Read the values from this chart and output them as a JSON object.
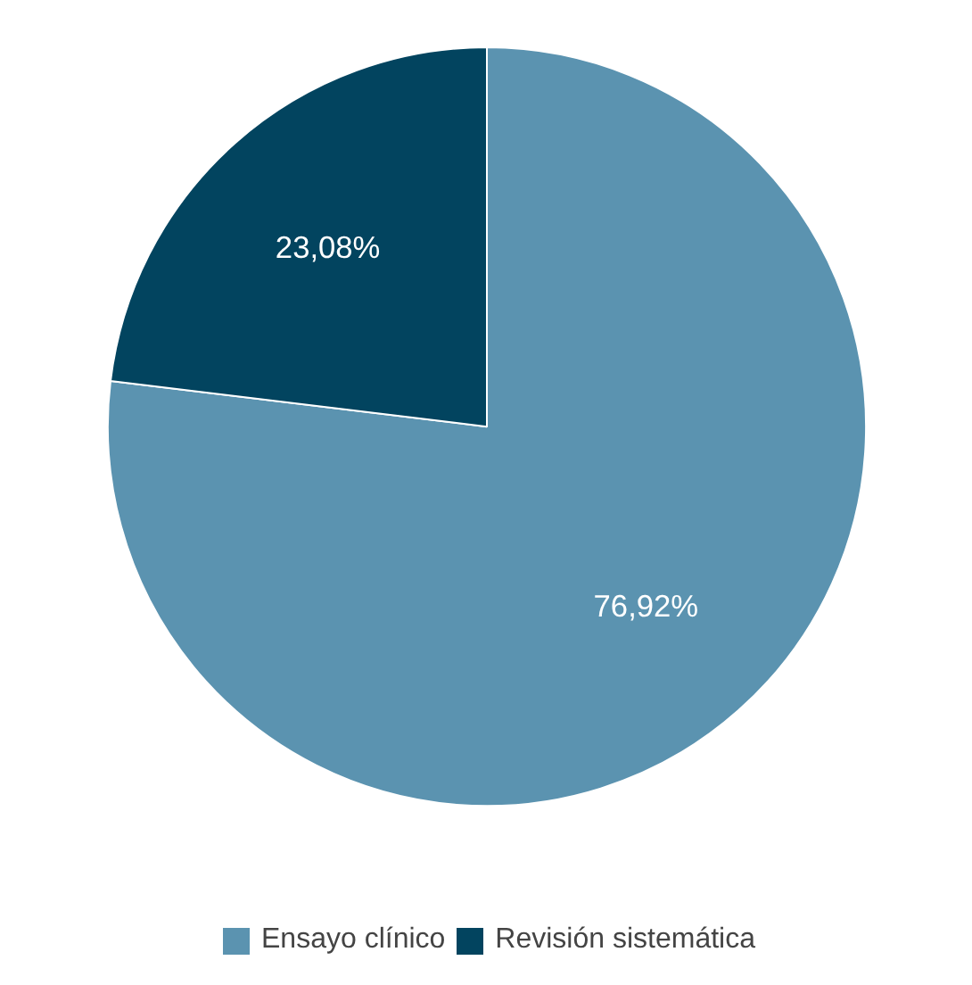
{
  "chart_data": {
    "type": "pie",
    "categories": [
      "Ensayo clínico",
      "Revisión sistemática"
    ],
    "values": [
      76.92,
      23.08
    ],
    "colors": [
      "#5b93b0",
      "#02445f"
    ],
    "value_labels": [
      "76,92%",
      "23,08%"
    ],
    "legend": "bottom"
  }
}
